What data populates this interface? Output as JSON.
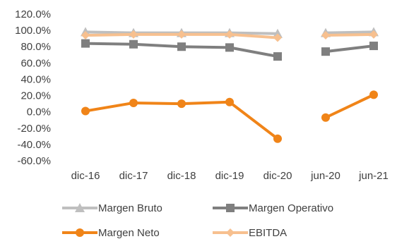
{
  "chart_data": {
    "type": "line",
    "categories": [
      "dic-16",
      "dic-17",
      "dic-18",
      "dic-19",
      "dic-20",
      "jun-20",
      "jun-21"
    ],
    "ylim": [
      -60,
      120
    ],
    "yticks": [
      "120.0%",
      "100.0%",
      "80.0%",
      "60.0%",
      "40.0%",
      "20.0%",
      "0.0%",
      "-20.0%",
      "-40.0%",
      "-60.0%"
    ],
    "ytick_values": [
      120,
      100,
      80,
      60,
      40,
      20,
      0,
      -20,
      -40,
      -60
    ],
    "gap_after_index": 4,
    "grid": false,
    "legend_position": "bottom",
    "series": [
      {
        "name": "Margen Bruto",
        "color": "#bfbfbf",
        "marker": "triangle",
        "values": [
          98,
          97,
          97,
          97,
          96,
          97,
          98
        ]
      },
      {
        "name": "Margen Operativo",
        "color": "#7f7f7f",
        "marker": "square",
        "values": [
          84,
          83,
          80,
          79,
          68,
          74,
          81
        ]
      },
      {
        "name": "Margen Neto",
        "color": "#f08418",
        "marker": "circle",
        "values": [
          1,
          11,
          10,
          12,
          -33,
          -7,
          21
        ]
      },
      {
        "name": "EBITDA",
        "color": "#f7c08f",
        "marker": "diamond",
        "values": [
          94,
          95,
          95,
          95,
          91,
          94,
          95
        ]
      }
    ]
  }
}
